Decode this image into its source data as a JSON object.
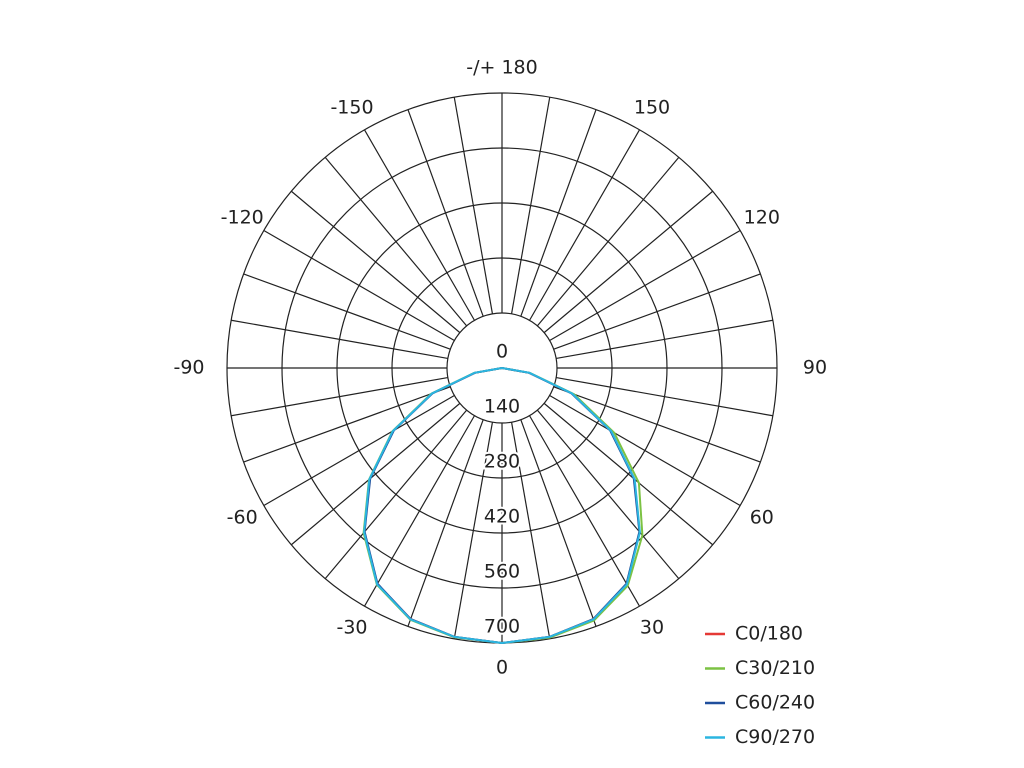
{
  "chart_data": {
    "type": "polar",
    "x": [
      -90,
      -80,
      -70,
      -60,
      -50,
      -40,
      -30,
      -20,
      -10,
      0,
      10,
      20,
      30,
      40,
      50,
      60,
      70,
      80,
      90
    ],
    "series": [
      {
        "name": "C0/180",
        "color": "#e53935",
        "values": [
          0,
          70,
          190,
          320,
          440,
          545,
          635,
          680,
          695,
          700,
          695,
          680,
          635,
          545,
          440,
          320,
          190,
          70,
          0
        ]
      },
      {
        "name": "C30/210",
        "color": "#7cc243",
        "values": [
          0,
          72,
          192,
          322,
          442,
          548,
          637,
          682,
          696,
          700,
          697,
          684,
          640,
          556,
          455,
          330,
          195,
          72,
          0
        ]
      },
      {
        "name": "C60/240",
        "color": "#1f4e9c",
        "values": [
          0,
          70,
          188,
          318,
          438,
          544,
          634,
          680,
          695,
          700,
          695,
          680,
          634,
          544,
          438,
          318,
          188,
          70,
          0
        ]
      },
      {
        "name": "C90/270",
        "color": "#2bb5e0",
        "values": [
          0,
          71,
          190,
          321,
          441,
          546,
          636,
          681,
          695,
          700,
          695,
          681,
          636,
          546,
          441,
          321,
          190,
          71,
          0
        ]
      }
    ],
    "rlim": [
      0,
      700
    ],
    "rticks": [
      0,
      140,
      280,
      420,
      560,
      700
    ],
    "xticks": [
      {
        "value": 180,
        "label": "-/+ 180"
      },
      150,
      -150,
      120,
      -120,
      90,
      -90,
      60,
      -60,
      30,
      -30,
      0
    ],
    "thetagrid": [
      -180,
      -170,
      -160,
      -150,
      -140,
      -130,
      -120,
      -110,
      -100,
      -90,
      -80,
      -70,
      -60,
      -50,
      -40,
      -30,
      -20,
      -10,
      0,
      10,
      20,
      30,
      40,
      50,
      60,
      70,
      80,
      90,
      100,
      110,
      120,
      130,
      140,
      150,
      160,
      170
    ],
    "legend": "lower right"
  }
}
